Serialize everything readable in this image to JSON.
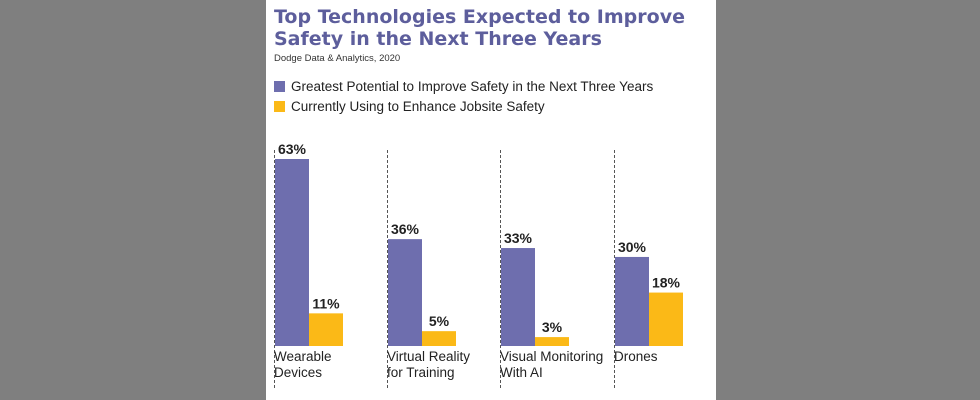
{
  "chart_data": {
    "type": "bar",
    "title": [
      "Top Technologies Expected to Improve",
      "Safety in the Next Three Years"
    ],
    "source": "Dodge Data & Analytics, 2020",
    "categories": [
      [
        "Wearable",
        "Devices"
      ],
      [
        "Virtual Reality",
        "for Training"
      ],
      [
        "Visual Monitoring",
        "With AI"
      ],
      [
        "Drones"
      ]
    ],
    "series": [
      {
        "name": "Greatest Potential to Improve Safety in the Next Three Years",
        "color": "#6e6eae",
        "values": [
          63,
          36,
          33,
          30
        ],
        "labels": [
          "63%",
          "36%",
          "33%",
          "30%"
        ]
      },
      {
        "name": "Currently Using to Enhance Jobsite Safety",
        "color": "#fbb917",
        "values": [
          11,
          5,
          3,
          18
        ],
        "labels": [
          "11%",
          "5%",
          "3%",
          "18%"
        ]
      }
    ],
    "ylim": [
      0,
      63
    ],
    "legend_position": "top-left",
    "grid": false
  }
}
